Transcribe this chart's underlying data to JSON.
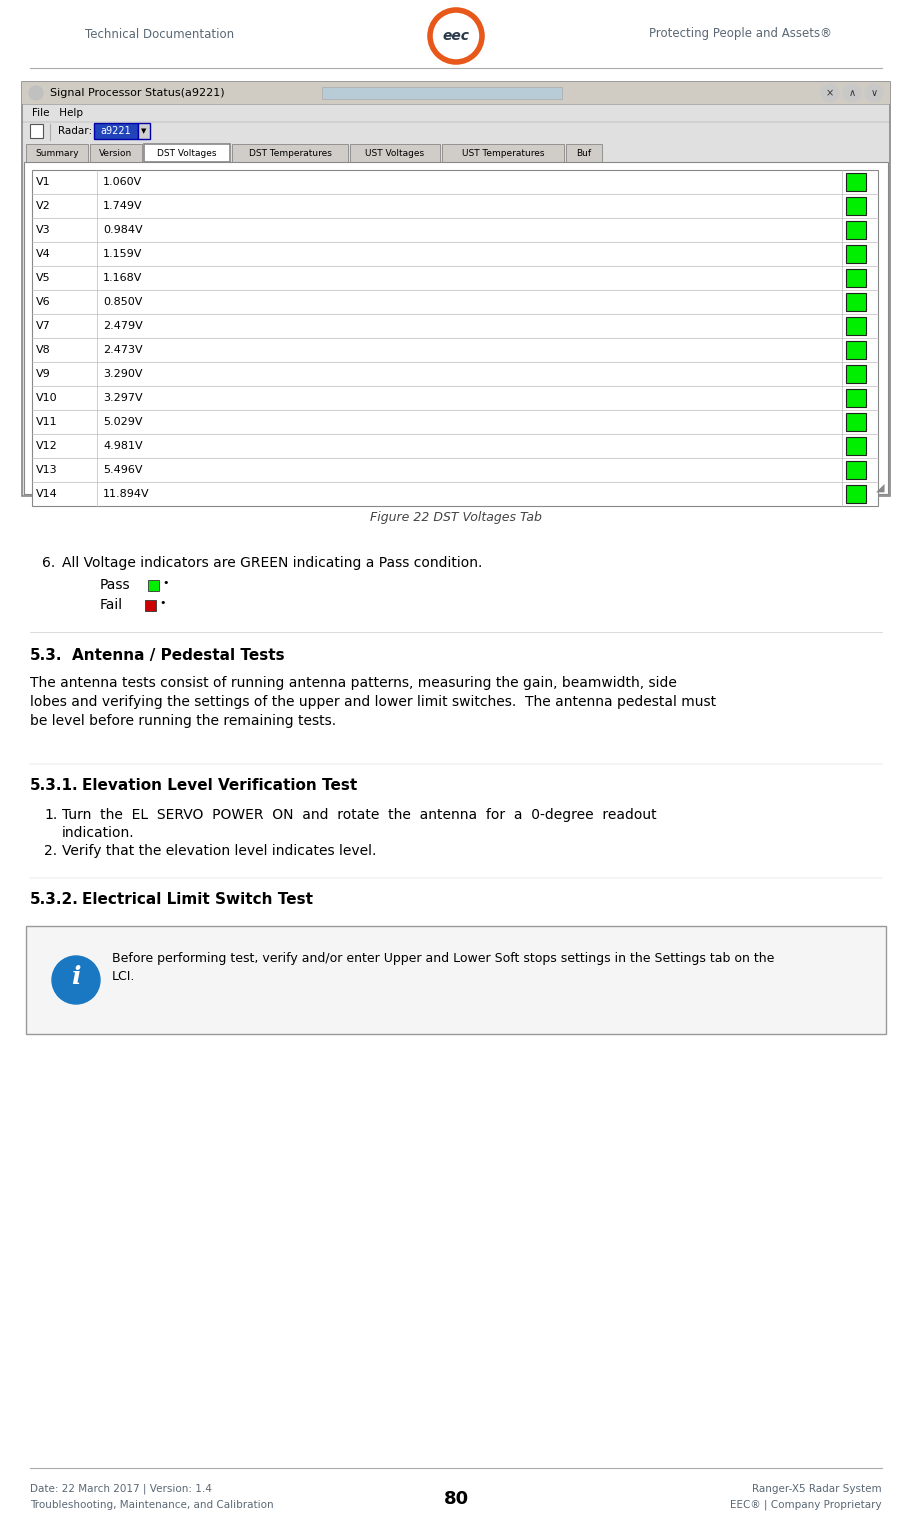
{
  "header_left": "Technical Documentation",
  "header_right": "Protecting People and Assets®",
  "footer_left_line1": "Date: 22 March 2017 | Version: 1.4",
  "footer_left_line2": "Troubleshooting, Maintenance, and Calibration",
  "footer_center": "80",
  "footer_right_line1": "Ranger-X5 Radar System",
  "footer_right_line2": "EEC® | Company Proprietary",
  "logo_color": "#E8581A",
  "logo_text": "eec",
  "header_text_color": "#5a6875",
  "body_bg": "#ffffff",
  "window_title": "Signal Processor Status(a9221)",
  "tabs": [
    "Summary",
    "Version",
    "DST Voltages",
    "DST Temperatures",
    "UST Voltages",
    "UST Temperatures",
    "Buf"
  ],
  "active_tab": "DST Voltages",
  "voltage_rows": [
    [
      "V1",
      "1.060V"
    ],
    [
      "V2",
      "1.749V"
    ],
    [
      "V3",
      "0.984V"
    ],
    [
      "V4",
      "1.159V"
    ],
    [
      "V5",
      "1.168V"
    ],
    [
      "V6",
      "0.850V"
    ],
    [
      "V7",
      "2.479V"
    ],
    [
      "V8",
      "2.473V"
    ],
    [
      "V9",
      "3.290V"
    ],
    [
      "V10",
      "3.297V"
    ],
    [
      "V11",
      "5.029V"
    ],
    [
      "V12",
      "4.981V"
    ],
    [
      "V13",
      "5.496V"
    ],
    [
      "V14",
      "11.894V"
    ]
  ],
  "figure_caption": "Figure 22 DST Voltages Tab",
  "pass_label": "Pass",
  "fail_label": "Fail",
  "section_53_body": "The antenna tests consist of running antenna patterns, measuring the gain, beamwidth, side\nlobes and verifying the settings of the upper and lower limit switches.  The antenna pedestal must\nbe level before running the remaining tests.",
  "section_531_item1_line1": "Turn  the  EL  SERVO  POWER  ON  and  rotate  the  antenna  for  a  0-degree  readout",
  "section_531_item1_line2": "indication.",
  "section_531_item2": "Verify that the elevation level indicates level.",
  "note_text_line1": "Before performing test, verify and/or enter Upper and Lower Soft stops settings in the Settings tab on the",
  "note_text_line2": "LCI.",
  "note_icon_color": "#1a78c2",
  "green_color": "#00ee00",
  "red_color": "#cc0000",
  "indicator_border": "#222222",
  "win_bg": "#e0e0e0",
  "content_bg": "#ffffff",
  "tab_active_bg": "#ffffff",
  "tab_inactive_bg": "#d0cdc8",
  "table_line_color": "#bbbbbb",
  "header_line_color": "#aaaaaa",
  "footer_line_color": "#aaaaaa"
}
